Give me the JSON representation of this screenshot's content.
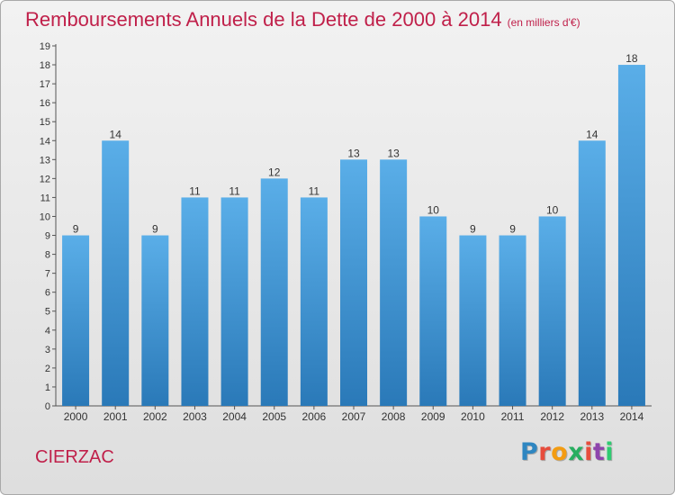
{
  "title": "Remboursements Annuels de la Dette de 2000 à 2014",
  "subtitle": "(en milliers d'€)",
  "town": "CIERZAC",
  "logo": {
    "text": "Proxiti",
    "letter_colors": [
      "#2e86c1",
      "#e74c3c",
      "#f39c12",
      "#27ae60",
      "#e74c3c",
      "#8e44ad",
      "#2ecc71"
    ]
  },
  "colors": {
    "bar_light": "#5aaee8",
    "bar_dark": "#2a79b8",
    "title": "#c0204a"
  },
  "chart_data": {
    "type": "bar",
    "title": "Remboursements Annuels de la Dette de 2000 à 2014",
    "subtitle": "(en milliers d'€)",
    "categories": [
      "2000",
      "2001",
      "2002",
      "2003",
      "2004",
      "2005",
      "2006",
      "2007",
      "2008",
      "2009",
      "2010",
      "2011",
      "2012",
      "2013",
      "2014"
    ],
    "values": [
      9,
      14,
      9,
      11,
      11,
      12,
      11,
      13,
      13,
      10,
      9,
      9,
      10,
      14,
      18
    ],
    "ylim": [
      0,
      19
    ],
    "yticks": [
      0,
      1,
      2,
      3,
      4,
      5,
      6,
      7,
      8,
      9,
      10,
      11,
      12,
      13,
      14,
      15,
      16,
      17,
      18,
      19
    ],
    "grid": false,
    "data_labels": true
  }
}
